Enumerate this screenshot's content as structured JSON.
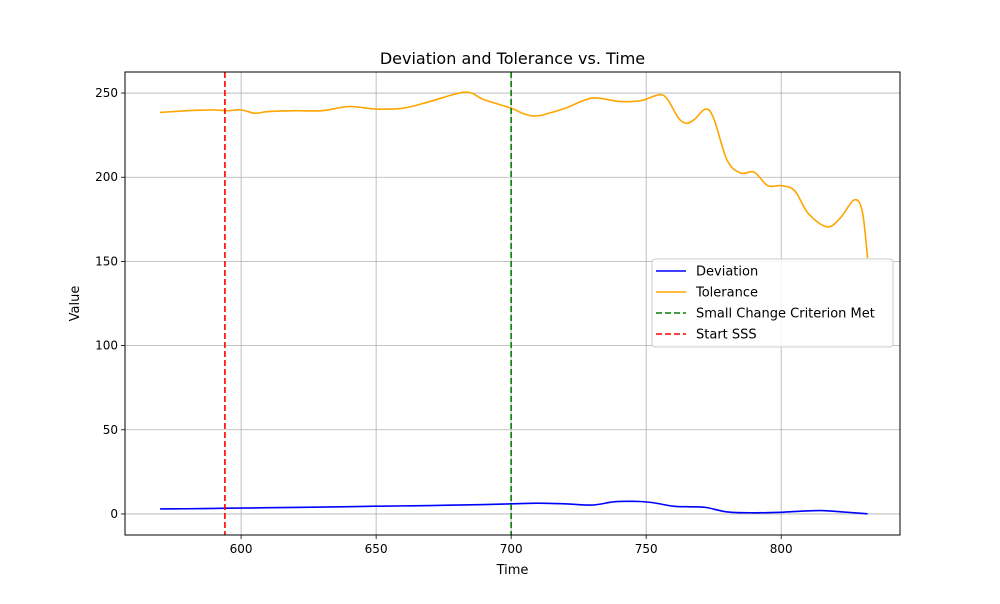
{
  "chart_data": {
    "type": "line",
    "title": "Deviation and Tolerance vs. Time",
    "xlabel": "Time",
    "ylabel": "Value",
    "xlim": [
      557,
      844
    ],
    "ylim": [
      -12.5,
      262.5
    ],
    "x_ticks": [
      600,
      650,
      700,
      750,
      800
    ],
    "y_ticks": [
      0,
      50,
      100,
      150,
      200,
      250
    ],
    "grid": true,
    "legend_position": "center-right",
    "series": [
      {
        "name": "Deviation",
        "color": "#0000ff",
        "style": "solid",
        "x": [
          570,
          580,
          590,
          600,
          610,
          620,
          630,
          640,
          650,
          660,
          670,
          680,
          690,
          700,
          710,
          720,
          730,
          738,
          745,
          752,
          760,
          765,
          772,
          780,
          790,
          800,
          808,
          815,
          822,
          832
        ],
        "y": [
          3.0,
          3.1,
          3.3,
          3.5,
          3.7,
          3.9,
          4.1,
          4.3,
          4.6,
          4.8,
          5.0,
          5.3,
          5.6,
          6.0,
          6.4,
          6.0,
          5.3,
          7.2,
          7.5,
          6.8,
          4.6,
          4.3,
          3.9,
          1.2,
          0.7,
          1.0,
          1.7,
          2.0,
          1.3,
          0.1
        ]
      },
      {
        "name": "Tolerance",
        "color": "#ffa500",
        "style": "solid",
        "x": [
          570,
          575,
          580,
          585,
          590,
          595,
          600,
          605,
          610,
          620,
          630,
          640,
          650,
          660,
          670,
          683,
          690,
          700,
          705,
          710,
          720,
          730,
          740,
          748,
          755,
          758,
          762,
          765,
          768,
          772,
          775,
          780,
          785,
          790,
          795,
          800,
          805,
          810,
          817,
          822,
          827,
          830,
          832
        ],
        "y": [
          238.5,
          239,
          239.5,
          239.8,
          240,
          239.5,
          240,
          238,
          239,
          239.5,
          239.5,
          242,
          240.5,
          241,
          245,
          250.5,
          246,
          241,
          237.5,
          236.5,
          241,
          247,
          245,
          245.5,
          249,
          246,
          235,
          232,
          234.5,
          240.5,
          235,
          210,
          202.5,
          203,
          195,
          195,
          192,
          178.5,
          170.5,
          176,
          186.5,
          180,
          152
        ]
      },
      {
        "name": "Small Change Criterion Met",
        "color": "#008000",
        "style": "dashed",
        "x_value": 700
      },
      {
        "name": "Start SSS",
        "color": "#ff0000",
        "style": "dashed",
        "x_value": 594
      }
    ]
  }
}
